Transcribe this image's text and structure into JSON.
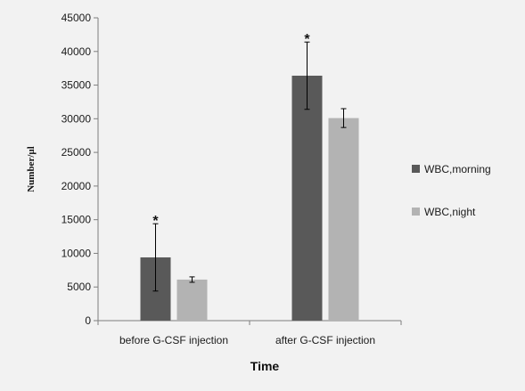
{
  "chart_data": {
    "type": "bar",
    "xlabel": "Time",
    "ylabel": "Number/µl",
    "ylim": [
      0,
      45000
    ],
    "yticks": [
      0,
      5000,
      10000,
      15000,
      20000,
      25000,
      30000,
      35000,
      40000,
      45000
    ],
    "categories": [
      "before G-CSF injection",
      "after G-CSF injection"
    ],
    "series": [
      {
        "name": "WBC,morning",
        "color": "#595959",
        "values": [
          9400,
          36400
        ],
        "errors": [
          5000,
          5000
        ]
      },
      {
        "name": "WBC,night",
        "color": "#b3b3b3",
        "values": [
          6100,
          30100
        ],
        "errors": [
          400,
          1400
        ]
      }
    ],
    "annotations": [
      "*",
      "*"
    ],
    "legend_position": "right",
    "grid": false
  }
}
